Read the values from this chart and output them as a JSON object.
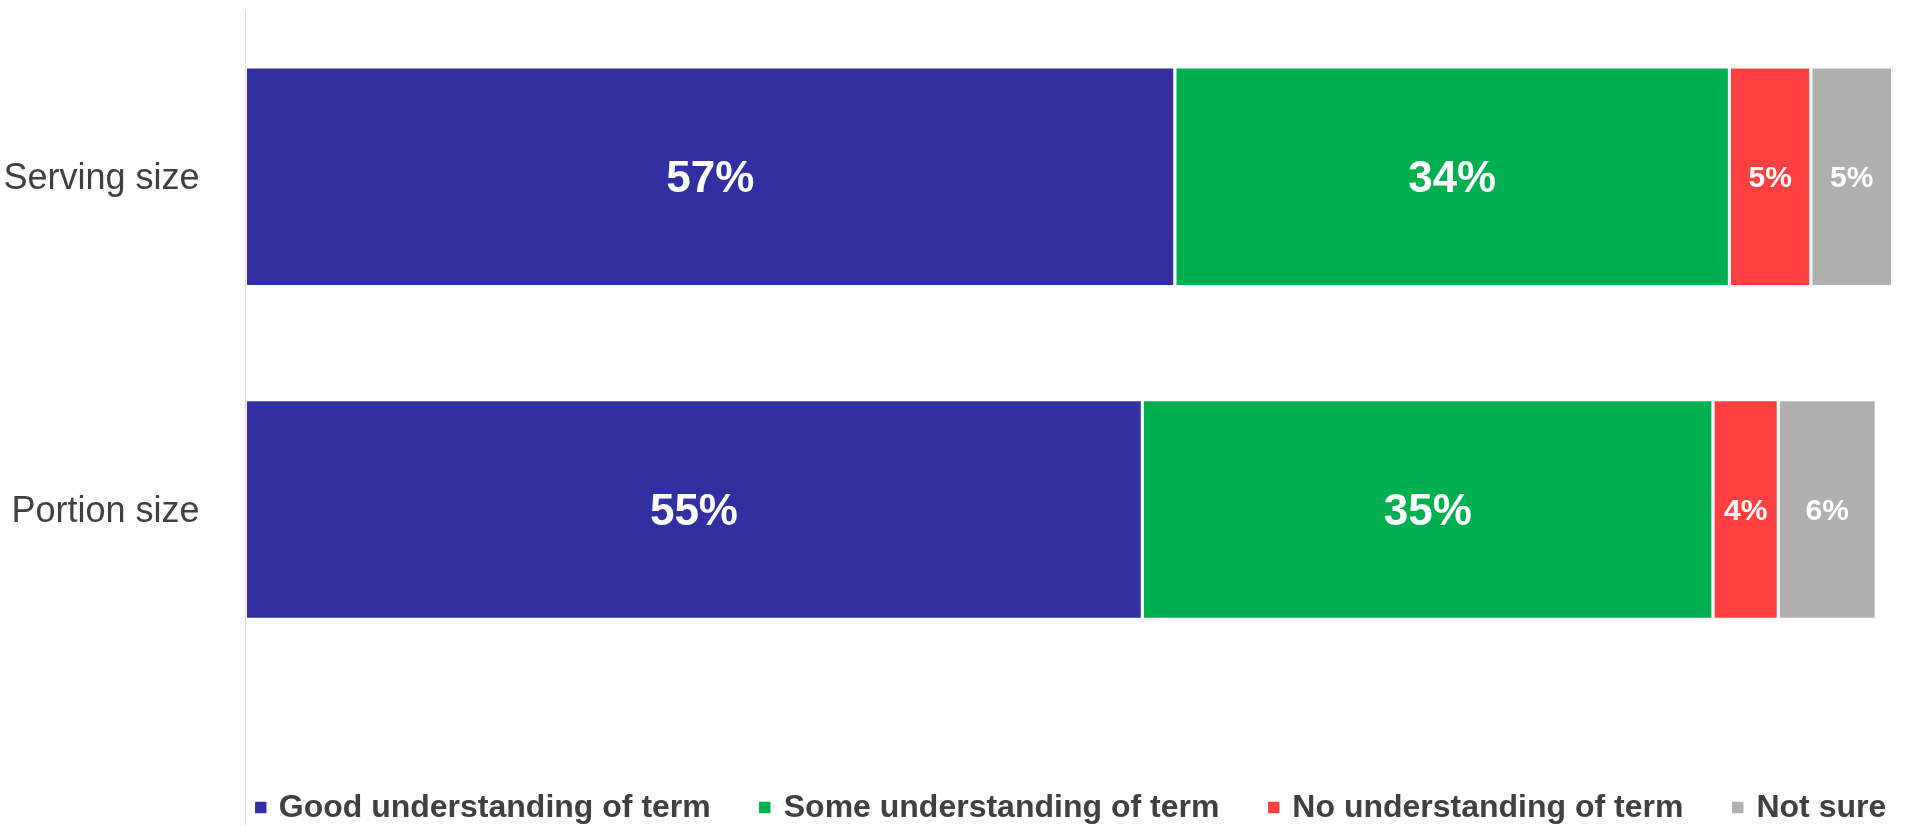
{
  "chart_data": {
    "type": "bar",
    "orientation": "horizontal",
    "stacked": true,
    "categories": [
      "Serving size",
      "Portion size"
    ],
    "series": [
      {
        "name": "Good understanding of term",
        "color": "#3230a0",
        "values": [
          57,
          55
        ],
        "value_labels": [
          "57%",
          "55%"
        ]
      },
      {
        "name": "Some understanding of term",
        "color": "#00b050",
        "values": [
          34,
          35
        ],
        "value_labels": [
          "34%",
          "35%"
        ]
      },
      {
        "name": "No understanding of term",
        "color": "#ff4040",
        "values": [
          5,
          4
        ],
        "value_labels": [
          "5%",
          "4%"
        ]
      },
      {
        "name": "Not sure",
        "color": "#b0b0b0",
        "values": [
          5,
          6
        ],
        "value_labels": [
          "5%",
          "6%"
        ]
      }
    ],
    "legend": "bottom",
    "grid": false
  }
}
